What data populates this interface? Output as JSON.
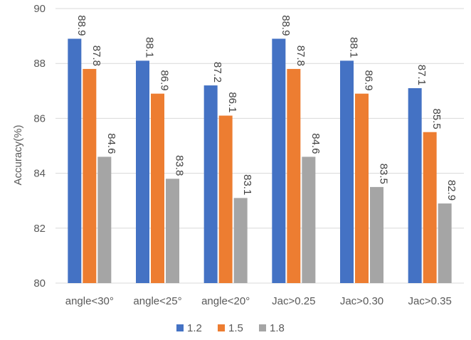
{
  "chart_data": {
    "type": "bar",
    "title": "",
    "xlabel": "",
    "ylabel": "Accuracy(%)",
    "ylim": [
      80,
      90
    ],
    "yticks": [
      80,
      82,
      84,
      86,
      88,
      90
    ],
    "grid": true,
    "legend_position": "bottom",
    "categories": [
      "angle<30°",
      "angle<25°",
      "angle<20°",
      "Jac>0.25",
      "Jac>0.30",
      "Jac>0.35"
    ],
    "series": [
      {
        "name": "1.2",
        "color": "#4472C4",
        "values": [
          88.9,
          88.1,
          87.2,
          88.9,
          88.1,
          87.1
        ]
      },
      {
        "name": "1.5",
        "color": "#ED7D31",
        "values": [
          87.8,
          86.9,
          86.1,
          87.8,
          86.9,
          85.5
        ]
      },
      {
        "name": "1.8",
        "color": "#A5A5A5",
        "values": [
          84.6,
          83.8,
          83.1,
          84.6,
          83.5,
          82.9
        ]
      }
    ]
  }
}
